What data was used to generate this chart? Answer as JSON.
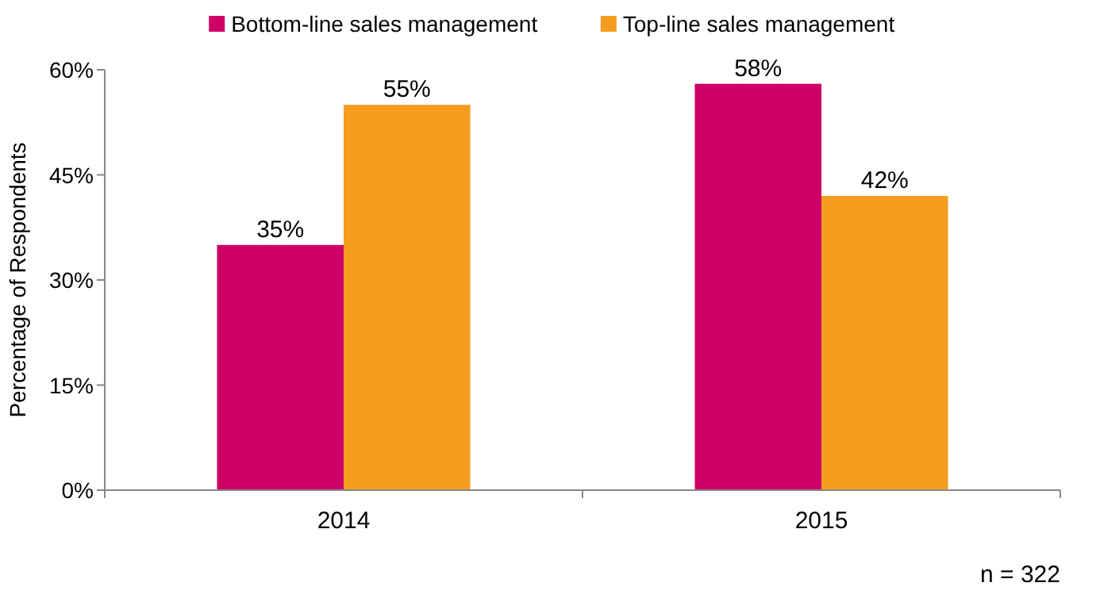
{
  "chart_data": {
    "type": "bar",
    "ylabel": "Percentage of Respondents",
    "categories": [
      "2014",
      "2015"
    ],
    "series": [
      {
        "name": "Bottom-line sales management",
        "color": "#cc0066",
        "values": [
          35,
          58
        ],
        "value_labels": [
          "35%",
          "58%"
        ]
      },
      {
        "name": "Top-line sales management",
        "color": "#f59d1e",
        "values": [
          55,
          42
        ],
        "value_labels": [
          "55%",
          "42%"
        ]
      }
    ],
    "ylim": [
      0,
      60
    ],
    "yticks": [
      {
        "value": 0,
        "label": "0%"
      },
      {
        "value": 15,
        "label": "15%"
      },
      {
        "value": 30,
        "label": "30%"
      },
      {
        "value": 45,
        "label": "45%"
      },
      {
        "value": 60,
        "label": "60%"
      }
    ],
    "grid": false,
    "legend": "top",
    "annotations": [
      "n = 322"
    ]
  }
}
